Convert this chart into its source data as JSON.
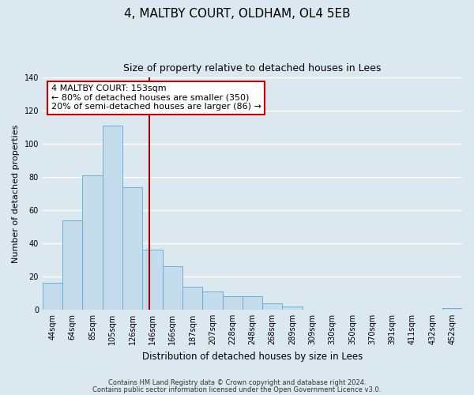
{
  "title": "4, MALTBY COURT, OLDHAM, OL4 5EB",
  "subtitle": "Size of property relative to detached houses in Lees",
  "xlabel": "Distribution of detached houses by size in Lees",
  "ylabel": "Number of detached properties",
  "footer_line1": "Contains HM Land Registry data © Crown copyright and database right 2024.",
  "footer_line2": "Contains public sector information licensed under the Open Government Licence v3.0.",
  "bin_labels": [
    "44sqm",
    "64sqm",
    "85sqm",
    "105sqm",
    "126sqm",
    "146sqm",
    "166sqm",
    "187sqm",
    "207sqm",
    "228sqm",
    "248sqm",
    "268sqm",
    "289sqm",
    "309sqm",
    "330sqm",
    "350sqm",
    "370sqm",
    "391sqm",
    "411sqm",
    "432sqm",
    "452sqm"
  ],
  "bar_values": [
    16,
    54,
    81,
    111,
    74,
    36,
    26,
    14,
    11,
    8,
    8,
    4,
    2,
    0,
    0,
    0,
    0,
    0,
    0,
    0,
    1
  ],
  "bar_color": "#c5dced",
  "bar_edgecolor": "#6aaed6",
  "ylim": [
    0,
    140
  ],
  "yticks": [
    0,
    20,
    40,
    60,
    80,
    100,
    120,
    140
  ],
  "property_sqm": 153,
  "bin_edges": [
    44,
    64,
    85,
    105,
    126,
    146,
    166,
    187,
    207,
    228,
    248,
    268,
    289,
    309,
    330,
    350,
    370,
    391,
    411,
    432,
    452,
    473
  ],
  "annotation_line1": "4 MALTBY COURT: 153sqm",
  "annotation_line2": "← 80% of detached houses are smaller (350)",
  "annotation_line3": "20% of semi-detached houses are larger (86) →",
  "annotation_box_fc": "#ffffff",
  "annotation_box_ec": "#cc0000",
  "property_line_color": "#aa0000",
  "bg_color": "#dce8f0",
  "grid_color": "#ffffff",
  "title_fontsize": 11,
  "subtitle_fontsize": 9,
  "ylabel_fontsize": 8,
  "xlabel_fontsize": 8.5,
  "tick_fontsize": 7,
  "annot_fontsize": 8
}
